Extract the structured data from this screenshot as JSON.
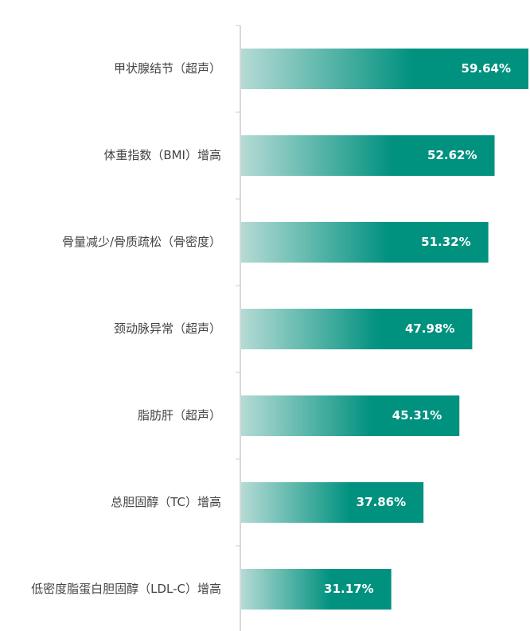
{
  "chart_data": {
    "type": "bar",
    "orientation": "horizontal",
    "categories": [
      "甲状腺结节（超声）",
      "体重指数（BMI）增高",
      "骨量减少/骨质疏松（骨密度）",
      "颈动脉异常（超声）",
      "脂肪肝（超声）",
      "总胆固醇（TC）增高",
      "低密度脂蛋白胆固醇（LDL-C）增高"
    ],
    "values": [
      59.64,
      52.62,
      51.32,
      47.98,
      45.31,
      37.86,
      31.17
    ],
    "value_labels": [
      "59.64%",
      "52.62%",
      "51.32%",
      "47.98%",
      "45.31%",
      "37.86%",
      "31.17%"
    ],
    "color": "#00917f",
    "gradient_from": "#b5dbd5"
  }
}
